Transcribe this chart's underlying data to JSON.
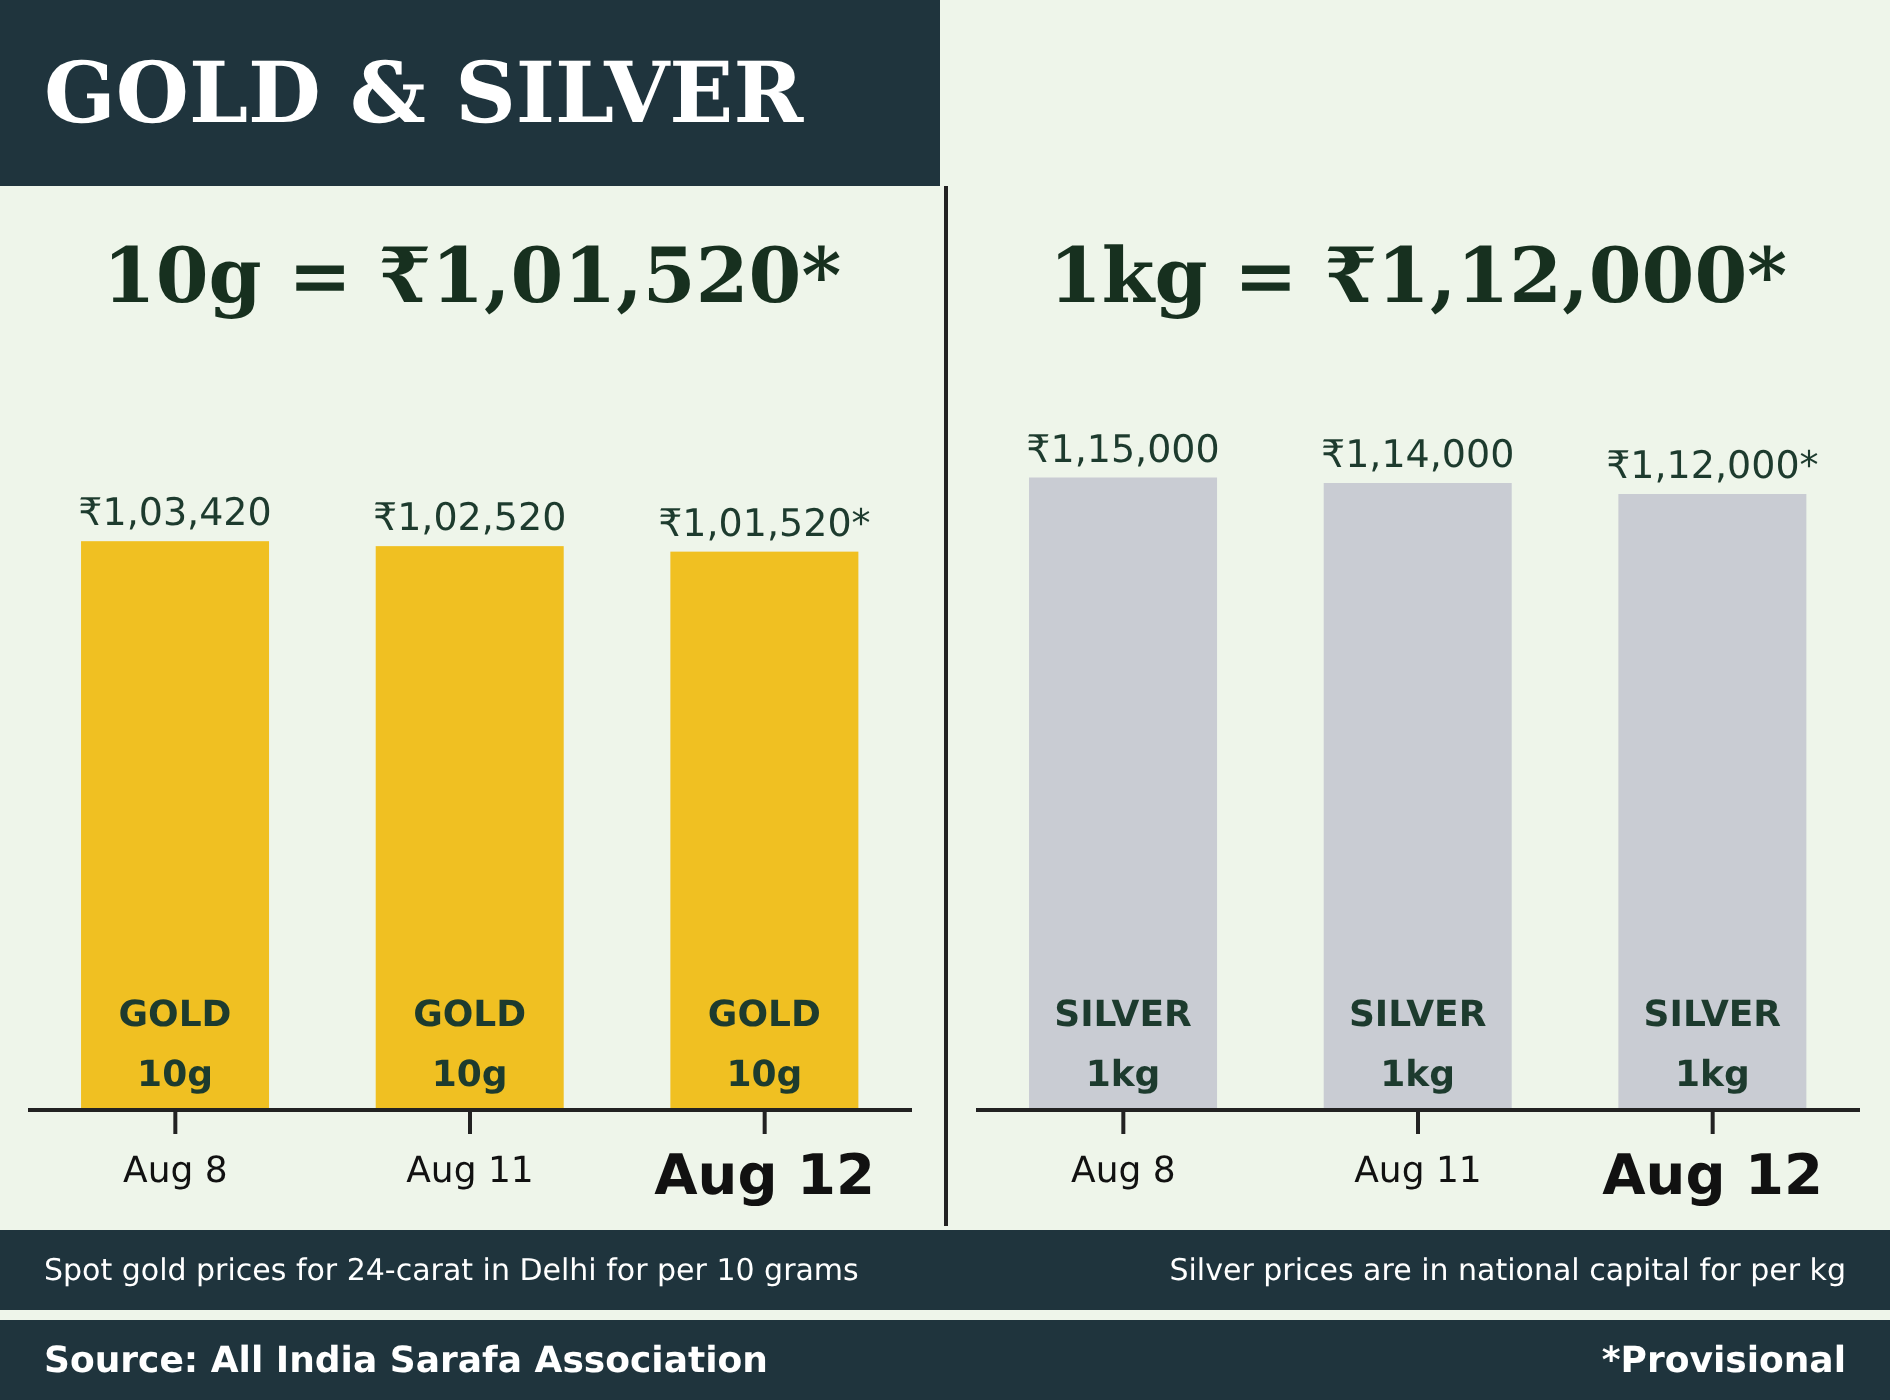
{
  "chart_data": [
    {
      "type": "bar",
      "title": "GOLD & SILVER",
      "subtitle": "10g = ₹1,01,520*",
      "categories": [
        "Aug 8",
        "Aug 11",
        "Aug 12"
      ],
      "values": [
        103420,
        102520,
        101520
      ],
      "color": "#f0c022",
      "tick_labels": "x",
      "value_labels": [
        "₹1,03,420",
        "₹1,02,520",
        "₹1,01,520*"
      ],
      "annotations": [
        "GOLD\n10g",
        "GOLD\n10g",
        "GOLD\n10g",
        "Spot gold prices for 24-carat in Delhi for per 10 grams",
        "Source: All India Sarafa Association"
      ]
    },
    {
      "type": "bar",
      "subtitle": "1kg = ₹1,12,000*",
      "categories": [
        "Aug 8",
        "Aug 11",
        "Aug 12"
      ],
      "values": [
        115000,
        114000,
        112000
      ],
      "color": "#c9ccd3",
      "tick_labels": "x",
      "value_labels": [
        "₹1,15,000",
        "₹1,14,000",
        "₹1,12,000*"
      ],
      "annotations": [
        "SILVER\n1kg",
        "SILVER\n1kg",
        "SILVER\n1kg",
        "Silver prices are in national capital for per kg",
        "*Provisional"
      ]
    }
  ]
}
